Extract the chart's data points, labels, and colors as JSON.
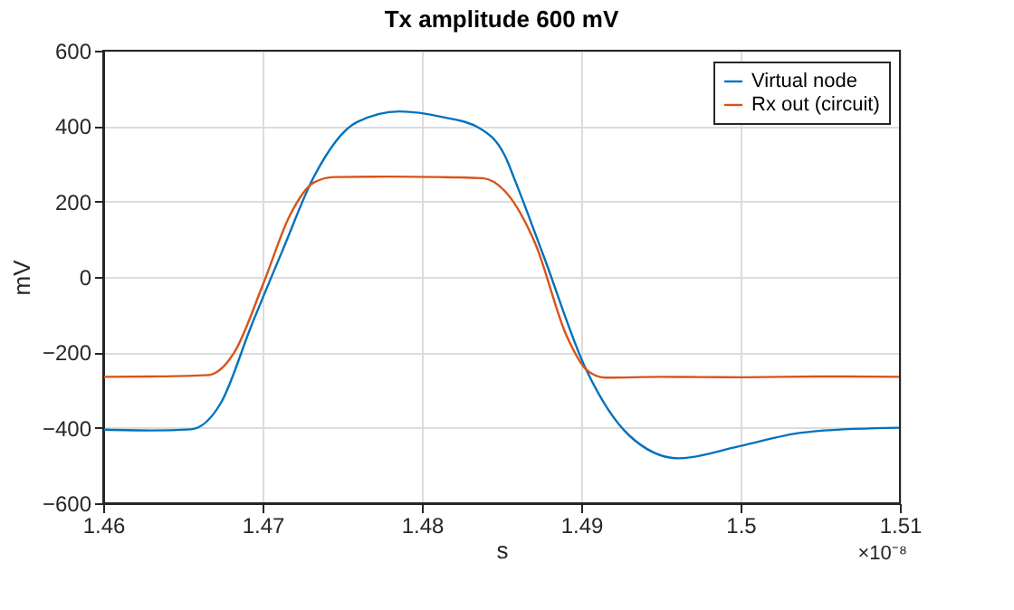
{
  "chart_data": {
    "type": "line",
    "title": "Tx amplitude 600 mV",
    "xlabel": "s",
    "ylabel": "mV",
    "annotations": [
      "×10⁻⁸"
    ],
    "xlim": [
      1.46,
      1.51
    ],
    "xticks": [
      1.46,
      1.47,
      1.48,
      1.49,
      1.5,
      1.51
    ],
    "ylim": [
      -600,
      600
    ],
    "yticks": [
      -600,
      -400,
      -200,
      0,
      200,
      400,
      600
    ],
    "grid": true,
    "legend": "top right",
    "line_style": "solid",
    "marker": "none",
    "series": [
      {
        "name": "Virtual node",
        "color": "#0072bd",
        "x": [
          1.46,
          1.463,
          1.4655,
          1.4674,
          1.4693,
          1.4713,
          1.4732,
          1.4759,
          1.4786,
          1.4813,
          1.4836,
          1.4852,
          1.4859,
          1.4876,
          1.4903,
          1.493,
          1.4961,
          1.4999,
          1.5038,
          1.5085,
          1.51
        ],
        "values": [
          -405,
          -407,
          -404,
          -333,
          -129,
          75,
          264,
          410,
          439,
          424,
          395,
          322,
          250,
          60,
          -245,
          -420,
          -481,
          -449,
          -413,
          -401,
          -400
        ]
      },
      {
        "name": "Rx out (circuit)",
        "color": "#d95319",
        "x": [
          1.46,
          1.463,
          1.4666,
          1.4682,
          1.4701,
          1.4717,
          1.4732,
          1.4745,
          1.478,
          1.481,
          1.4838,
          1.4852,
          1.4871,
          1.4891,
          1.4903,
          1.4915,
          1.495,
          1.5,
          1.505,
          1.51
        ],
        "values": [
          -265,
          -264,
          -260,
          -202,
          -12,
          162,
          250,
          265,
          266,
          265,
          262,
          228,
          90,
          -158,
          -245,
          -267,
          -265,
          -266,
          -264,
          -265
        ]
      }
    ]
  }
}
